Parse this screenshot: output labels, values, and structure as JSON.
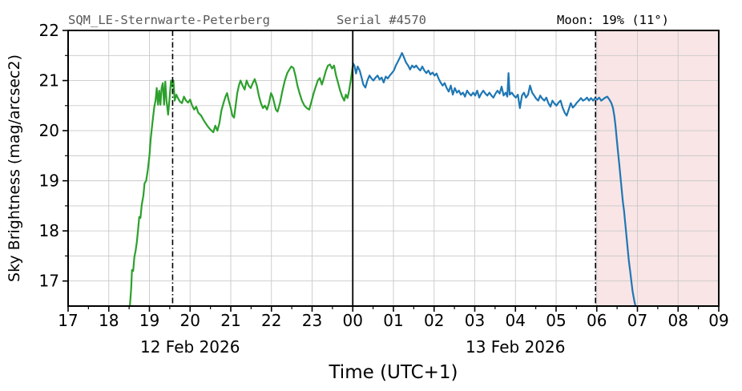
{
  "chart_data": {
    "type": "line",
    "title_station": "SQM_LE-Sternwarte-Peterberg",
    "title_serial": "Serial #4570",
    "moon_label": "Moon: 19% (11°)",
    "xlabel": "Time (UTC+1)",
    "ylabel": "Sky Brightness (mag/arcsec2)",
    "xlim": [
      17,
      33
    ],
    "ylim": [
      16.5,
      22
    ],
    "x_encoding": "hours since 12 Feb 2026 00:00 UTC+1; values >= 24 fall on 13 Feb 2026",
    "grid": true,
    "x_minor_step": 0.5,
    "y_grid_step": 0.5,
    "xticks": [
      {
        "t": 17,
        "label": "17"
      },
      {
        "t": 18,
        "label": "18"
      },
      {
        "t": 19,
        "label": "19"
      },
      {
        "t": 20,
        "label": "20"
      },
      {
        "t": 21,
        "label": "21"
      },
      {
        "t": 22,
        "label": "22"
      },
      {
        "t": 23,
        "label": "23"
      },
      {
        "t": 24,
        "label": "00"
      },
      {
        "t": 25,
        "label": "01"
      },
      {
        "t": 26,
        "label": "02"
      },
      {
        "t": 27,
        "label": "03"
      },
      {
        "t": 28,
        "label": "04"
      },
      {
        "t": 29,
        "label": "05"
      },
      {
        "t": 30,
        "label": "06"
      },
      {
        "t": 31,
        "label": "07"
      },
      {
        "t": 32,
        "label": "08"
      },
      {
        "t": 33,
        "label": "09"
      }
    ],
    "yticks": [
      {
        "v": 17,
        "label": "17"
      },
      {
        "v": 18,
        "label": "18"
      },
      {
        "v": 19,
        "label": "19"
      },
      {
        "v": 20,
        "label": "20"
      },
      {
        "v": 21,
        "label": "21"
      },
      {
        "v": 22,
        "label": "22"
      }
    ],
    "date_labels": [
      {
        "text": "12 Feb 2026",
        "t": 20.0
      },
      {
        "text": "13 Feb 2026",
        "t": 28.0
      }
    ],
    "vlines": [
      {
        "t": 24.0,
        "style": "solid",
        "meaning": "midnight"
      },
      {
        "t": 19.57,
        "style": "dashdot",
        "meaning": "twilight-marker-evening"
      },
      {
        "t": 29.97,
        "style": "dashdot",
        "meaning": "twilight-marker-morning"
      }
    ],
    "shaded_region": {
      "t_start": 29.97,
      "t_end": 33.0,
      "meaning": "morning-twilight-daylight"
    },
    "colors": {
      "night1": "#2ca02c",
      "night2": "#1f77b4",
      "daylight_fill": "#f9e5e5",
      "grid": "#c9c9c9",
      "vline": "#000000",
      "title_gray": "#595959"
    },
    "series": [
      {
        "name": "12 Feb 2026",
        "color_key": "night1",
        "points": [
          [
            18.52,
            16.5
          ],
          [
            18.55,
            16.85
          ],
          [
            18.57,
            17.22
          ],
          [
            18.6,
            17.2
          ],
          [
            18.63,
            17.48
          ],
          [
            18.66,
            17.6
          ],
          [
            18.69,
            17.78
          ],
          [
            18.72,
            18.02
          ],
          [
            18.75,
            18.28
          ],
          [
            18.78,
            18.26
          ],
          [
            18.81,
            18.52
          ],
          [
            18.85,
            18.7
          ],
          [
            18.88,
            18.95
          ],
          [
            18.92,
            19.0
          ],
          [
            18.96,
            19.22
          ],
          [
            19.0,
            19.5
          ],
          [
            19.03,
            19.82
          ],
          [
            19.06,
            20.05
          ],
          [
            19.09,
            20.28
          ],
          [
            19.12,
            20.48
          ],
          [
            19.15,
            20.6
          ],
          [
            19.18,
            20.85
          ],
          [
            19.21,
            20.52
          ],
          [
            19.24,
            20.8
          ],
          [
            19.27,
            20.52
          ],
          [
            19.3,
            20.85
          ],
          [
            19.33,
            20.95
          ],
          [
            19.36,
            20.52
          ],
          [
            19.39,
            20.98
          ],
          [
            19.42,
            20.6
          ],
          [
            19.46,
            20.32
          ],
          [
            19.5,
            20.7
          ],
          [
            19.53,
            21.0
          ],
          [
            19.56,
            20.88
          ],
          [
            19.59,
            21.0
          ],
          [
            19.62,
            20.6
          ],
          [
            19.66,
            20.72
          ],
          [
            19.7,
            20.65
          ],
          [
            19.75,
            20.58
          ],
          [
            19.8,
            20.55
          ],
          [
            19.85,
            20.68
          ],
          [
            19.9,
            20.6
          ],
          [
            19.95,
            20.56
          ],
          [
            20.0,
            20.62
          ],
          [
            20.05,
            20.5
          ],
          [
            20.1,
            20.42
          ],
          [
            20.15,
            20.48
          ],
          [
            20.2,
            20.36
          ],
          [
            20.27,
            20.3
          ],
          [
            20.34,
            20.2
          ],
          [
            20.42,
            20.1
          ],
          [
            20.5,
            20.02
          ],
          [
            20.57,
            19.97
          ],
          [
            20.62,
            20.1
          ],
          [
            20.67,
            20.0
          ],
          [
            20.72,
            20.15
          ],
          [
            20.77,
            20.4
          ],
          [
            20.82,
            20.55
          ],
          [
            20.87,
            20.68
          ],
          [
            20.91,
            20.75
          ],
          [
            20.95,
            20.6
          ],
          [
            21.0,
            20.45
          ],
          [
            21.04,
            20.3
          ],
          [
            21.08,
            20.26
          ],
          [
            21.12,
            20.5
          ],
          [
            21.16,
            20.75
          ],
          [
            21.2,
            20.9
          ],
          [
            21.24,
            21.0
          ],
          [
            21.29,
            20.9
          ],
          [
            21.34,
            20.82
          ],
          [
            21.39,
            21.0
          ],
          [
            21.44,
            20.9
          ],
          [
            21.49,
            20.85
          ],
          [
            21.54,
            20.95
          ],
          [
            21.59,
            21.03
          ],
          [
            21.64,
            20.9
          ],
          [
            21.69,
            20.7
          ],
          [
            21.74,
            20.55
          ],
          [
            21.79,
            20.45
          ],
          [
            21.84,
            20.5
          ],
          [
            21.89,
            20.42
          ],
          [
            21.94,
            20.55
          ],
          [
            21.99,
            20.75
          ],
          [
            22.03,
            20.68
          ],
          [
            22.07,
            20.55
          ],
          [
            22.11,
            20.42
          ],
          [
            22.15,
            20.38
          ],
          [
            22.21,
            20.55
          ],
          [
            22.27,
            20.8
          ],
          [
            22.33,
            21.0
          ],
          [
            22.39,
            21.15
          ],
          [
            22.44,
            21.22
          ],
          [
            22.49,
            21.28
          ],
          [
            22.54,
            21.25
          ],
          [
            22.59,
            21.1
          ],
          [
            22.64,
            20.9
          ],
          [
            22.69,
            20.75
          ],
          [
            22.75,
            20.6
          ],
          [
            22.81,
            20.5
          ],
          [
            22.87,
            20.45
          ],
          [
            22.93,
            20.42
          ],
          [
            22.99,
            20.6
          ],
          [
            23.04,
            20.75
          ],
          [
            23.09,
            20.88
          ],
          [
            23.14,
            21.0
          ],
          [
            23.19,
            21.05
          ],
          [
            23.24,
            20.92
          ],
          [
            23.29,
            21.05
          ],
          [
            23.34,
            21.2
          ],
          [
            23.39,
            21.3
          ],
          [
            23.44,
            21.32
          ],
          [
            23.49,
            21.24
          ],
          [
            23.54,
            21.3
          ],
          [
            23.59,
            21.1
          ],
          [
            23.64,
            20.95
          ],
          [
            23.69,
            20.8
          ],
          [
            23.74,
            20.68
          ],
          [
            23.79,
            20.6
          ],
          [
            23.83,
            20.72
          ],
          [
            23.87,
            20.65
          ],
          [
            23.91,
            20.8
          ],
          [
            23.95,
            21.0
          ],
          [
            24.0,
            21.3
          ]
        ]
      },
      {
        "name": "13 Feb 2026",
        "color_key": "night2",
        "points": [
          [
            24.0,
            21.35
          ],
          [
            24.04,
            21.3
          ],
          [
            24.08,
            21.14
          ],
          [
            24.12,
            21.28
          ],
          [
            24.17,
            21.2
          ],
          [
            24.22,
            21.05
          ],
          [
            24.26,
            20.92
          ],
          [
            24.31,
            20.86
          ],
          [
            24.36,
            21.0
          ],
          [
            24.41,
            21.1
          ],
          [
            24.46,
            21.04
          ],
          [
            24.51,
            21.0
          ],
          [
            24.56,
            21.06
          ],
          [
            24.61,
            21.1
          ],
          [
            24.66,
            21.02
          ],
          [
            24.71,
            21.06
          ],
          [
            24.76,
            20.96
          ],
          [
            24.81,
            21.08
          ],
          [
            24.86,
            21.04
          ],
          [
            24.91,
            21.1
          ],
          [
            24.96,
            21.15
          ],
          [
            25.01,
            21.2
          ],
          [
            25.06,
            21.3
          ],
          [
            25.11,
            21.38
          ],
          [
            25.16,
            21.46
          ],
          [
            25.21,
            21.55
          ],
          [
            25.26,
            21.46
          ],
          [
            25.31,
            21.36
          ],
          [
            25.36,
            21.3
          ],
          [
            25.41,
            21.22
          ],
          [
            25.46,
            21.3
          ],
          [
            25.51,
            21.26
          ],
          [
            25.56,
            21.3
          ],
          [
            25.61,
            21.24
          ],
          [
            25.66,
            21.2
          ],
          [
            25.71,
            21.28
          ],
          [
            25.76,
            21.2
          ],
          [
            25.81,
            21.15
          ],
          [
            25.86,
            21.2
          ],
          [
            25.91,
            21.12
          ],
          [
            25.96,
            21.16
          ],
          [
            26.01,
            21.1
          ],
          [
            26.06,
            21.14
          ],
          [
            26.11,
            21.04
          ],
          [
            26.16,
            20.96
          ],
          [
            26.21,
            20.9
          ],
          [
            26.26,
            20.95
          ],
          [
            26.31,
            20.85
          ],
          [
            26.36,
            20.78
          ],
          [
            26.41,
            20.9
          ],
          [
            26.46,
            20.72
          ],
          [
            26.51,
            20.85
          ],
          [
            26.56,
            20.76
          ],
          [
            26.61,
            20.8
          ],
          [
            26.66,
            20.72
          ],
          [
            26.71,
            20.76
          ],
          [
            26.76,
            20.68
          ],
          [
            26.81,
            20.8
          ],
          [
            26.86,
            20.74
          ],
          [
            26.91,
            20.7
          ],
          [
            26.96,
            20.76
          ],
          [
            27.01,
            20.7
          ],
          [
            27.06,
            20.8
          ],
          [
            27.11,
            20.66
          ],
          [
            27.16,
            20.74
          ],
          [
            27.21,
            20.8
          ],
          [
            27.26,
            20.74
          ],
          [
            27.31,
            20.7
          ],
          [
            27.36,
            20.76
          ],
          [
            27.41,
            20.7
          ],
          [
            27.46,
            20.66
          ],
          [
            27.51,
            20.74
          ],
          [
            27.56,
            20.8
          ],
          [
            27.61,
            20.74
          ],
          [
            27.66,
            20.88
          ],
          [
            27.71,
            20.7
          ],
          [
            27.76,
            20.76
          ],
          [
            27.8,
            20.68
          ],
          [
            27.83,
            21.15
          ],
          [
            27.86,
            20.72
          ],
          [
            27.91,
            20.76
          ],
          [
            27.96,
            20.7
          ],
          [
            28.01,
            20.66
          ],
          [
            28.06,
            20.72
          ],
          [
            28.11,
            20.45
          ],
          [
            28.16,
            20.7
          ],
          [
            28.21,
            20.76
          ],
          [
            28.26,
            20.66
          ],
          [
            28.31,
            20.72
          ],
          [
            28.36,
            20.9
          ],
          [
            28.41,
            20.76
          ],
          [
            28.46,
            20.7
          ],
          [
            28.51,
            20.64
          ],
          [
            28.56,
            20.6
          ],
          [
            28.61,
            20.7
          ],
          [
            28.66,
            20.64
          ],
          [
            28.71,
            20.6
          ],
          [
            28.76,
            20.66
          ],
          [
            28.81,
            20.55
          ],
          [
            28.86,
            20.48
          ],
          [
            28.91,
            20.6
          ],
          [
            28.96,
            20.54
          ],
          [
            29.01,
            20.5
          ],
          [
            29.06,
            20.56
          ],
          [
            29.11,
            20.6
          ],
          [
            29.16,
            20.46
          ],
          [
            29.21,
            20.36
          ],
          [
            29.26,
            20.3
          ],
          [
            29.31,
            20.42
          ],
          [
            29.36,
            20.55
          ],
          [
            29.41,
            20.46
          ],
          [
            29.46,
            20.5
          ],
          [
            29.51,
            20.56
          ],
          [
            29.56,
            20.6
          ],
          [
            29.61,
            20.65
          ],
          [
            29.66,
            20.6
          ],
          [
            29.71,
            20.62
          ],
          [
            29.76,
            20.66
          ],
          [
            29.81,
            20.6
          ],
          [
            29.86,
            20.65
          ],
          [
            29.91,
            20.6
          ],
          [
            29.96,
            20.65
          ],
          [
            30.01,
            20.62
          ],
          [
            30.06,
            20.66
          ],
          [
            30.11,
            20.6
          ],
          [
            30.16,
            20.63
          ],
          [
            30.21,
            20.66
          ],
          [
            30.26,
            20.68
          ],
          [
            30.31,
            20.62
          ],
          [
            30.36,
            20.55
          ],
          [
            30.4,
            20.45
          ],
          [
            30.43,
            20.3
          ],
          [
            30.46,
            20.1
          ],
          [
            30.49,
            19.85
          ],
          [
            30.52,
            19.6
          ],
          [
            30.55,
            19.35
          ],
          [
            30.58,
            19.1
          ],
          [
            30.61,
            18.85
          ],
          [
            30.64,
            18.6
          ],
          [
            30.67,
            18.4
          ],
          [
            30.7,
            18.15
          ],
          [
            30.73,
            17.9
          ],
          [
            30.76,
            17.65
          ],
          [
            30.79,
            17.4
          ],
          [
            30.82,
            17.2
          ],
          [
            30.85,
            17.0
          ],
          [
            30.88,
            16.8
          ],
          [
            30.92,
            16.62
          ],
          [
            30.95,
            16.5
          ]
        ]
      }
    ]
  }
}
